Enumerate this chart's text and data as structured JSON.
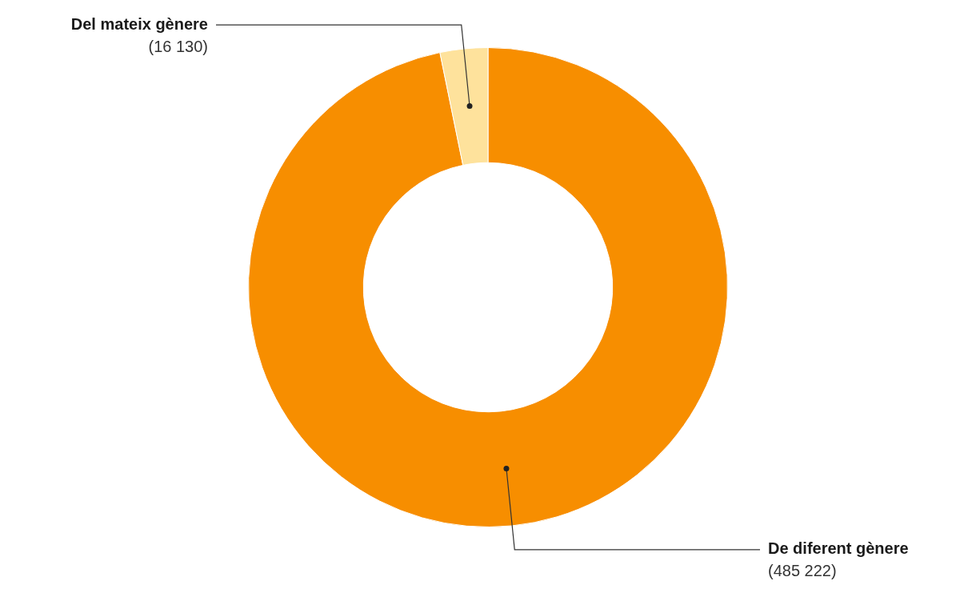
{
  "chart_data": {
    "type": "donut",
    "categories": [
      "De diferent gènere",
      "Del mateix gènere"
    ],
    "values": [
      485222,
      16130
    ],
    "colors": [
      "#f78e00",
      "#fee29c"
    ],
    "value_labels": [
      "(485 222)",
      "(16 130)"
    ]
  }
}
